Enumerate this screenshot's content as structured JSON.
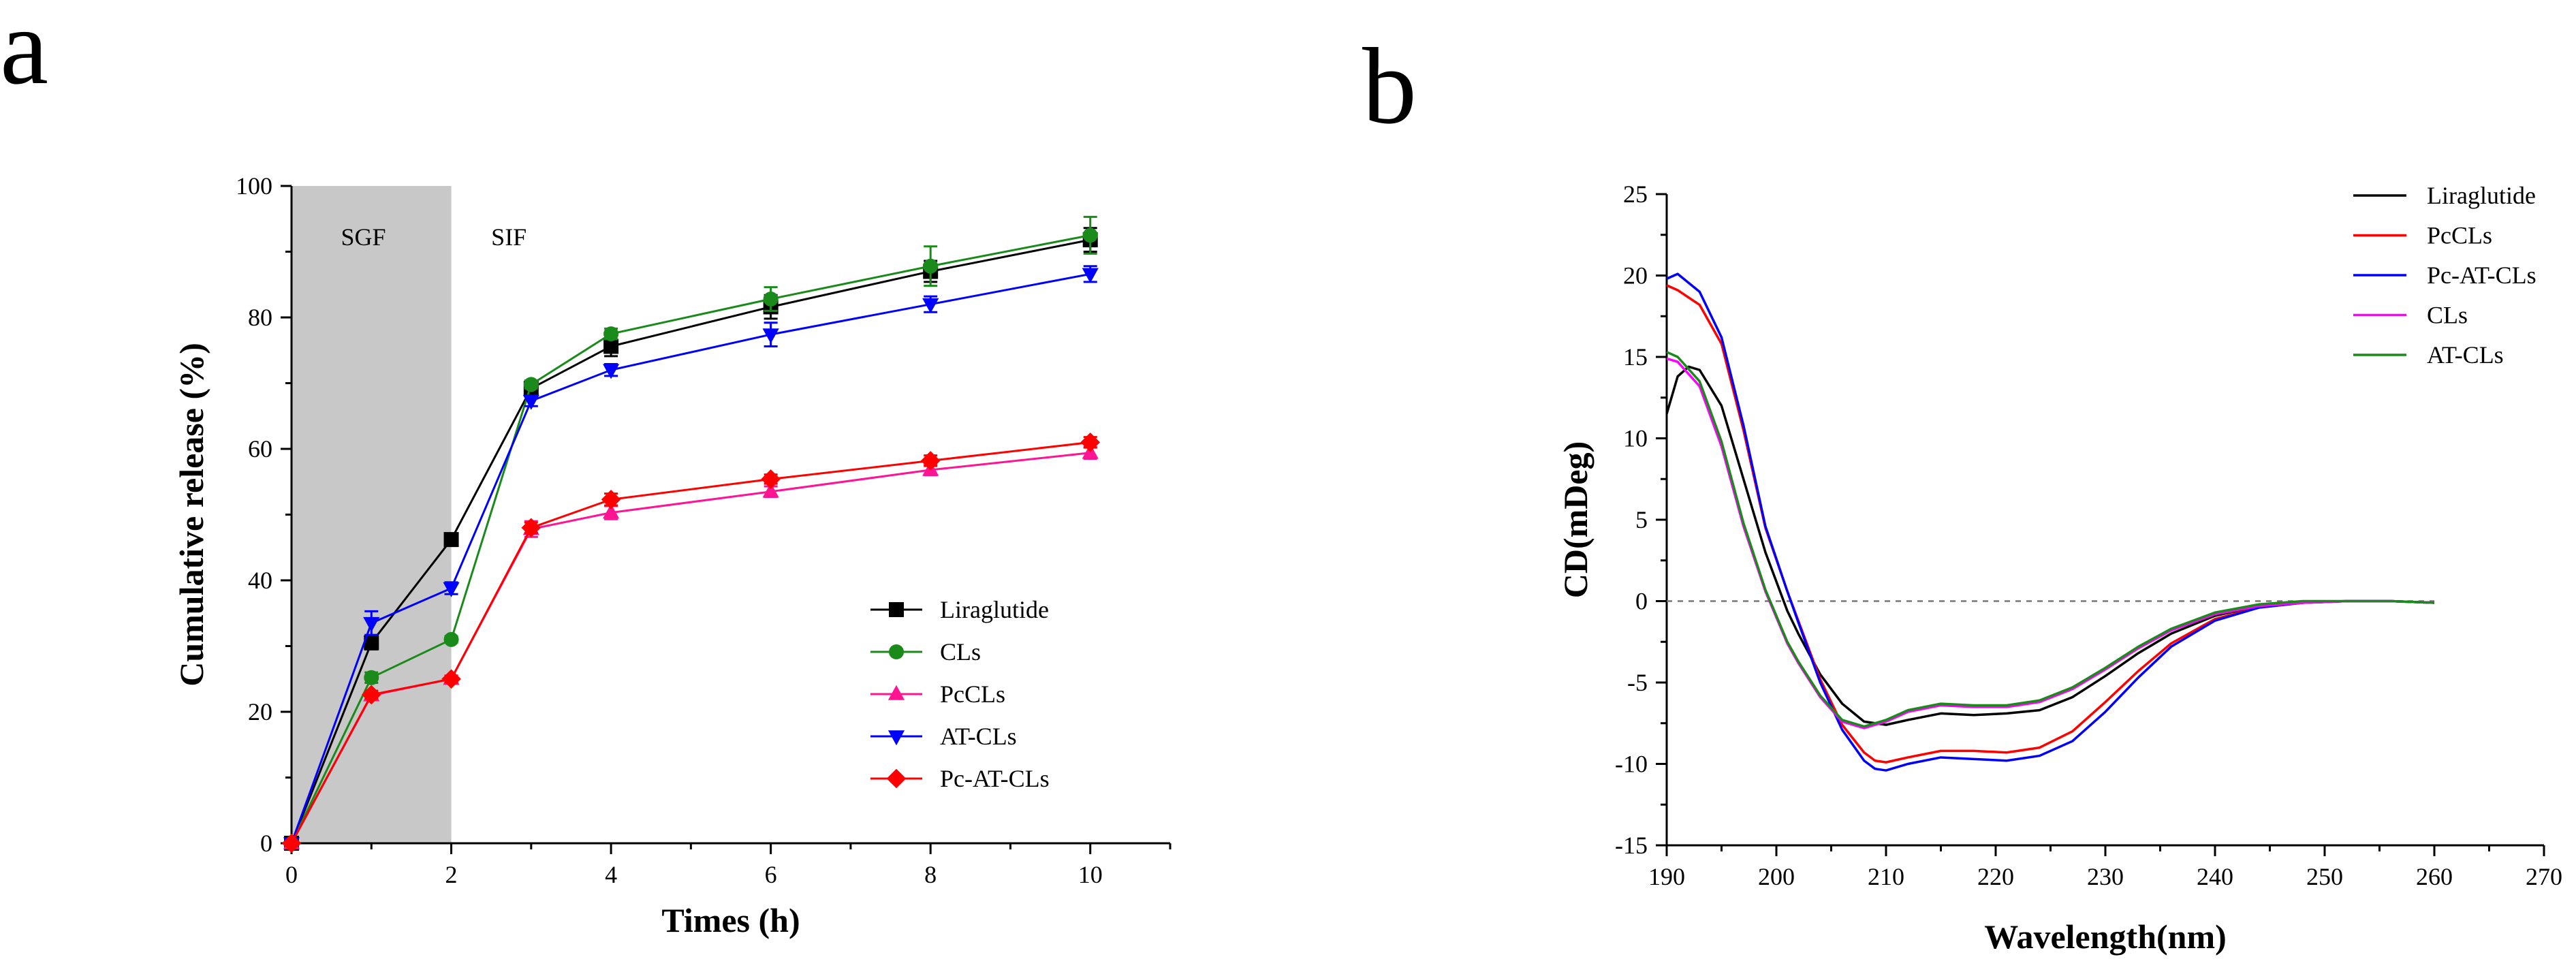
{
  "chart_data": [
    {
      "id": "a",
      "panel_label": "a",
      "type": "line",
      "xlabel": "Times (h)",
      "ylabel": "Cumulative release (%)",
      "xlim": [
        0,
        11
      ],
      "ylim": [
        0,
        100
      ],
      "xticks": [
        0,
        2,
        4,
        6,
        8,
        10
      ],
      "yticks": [
        0,
        20,
        40,
        60,
        80,
        100
      ],
      "x": [
        0,
        1,
        2,
        3,
        4,
        6,
        8,
        10
      ],
      "shaded_region": {
        "x0": 0,
        "x1": 2,
        "color": "#c8c8c8"
      },
      "annotations": [
        {
          "text": "SGF",
          "x": 0.9,
          "y": 91
        },
        {
          "text": "SIF",
          "x": 2.5,
          "y": 91
        }
      ],
      "legend_position": "lower-right",
      "series": [
        {
          "name": "Liraglutide",
          "color": "#000000",
          "marker": "square",
          "values": [
            0,
            30.5,
            46.2,
            69.2,
            75.6,
            81.6,
            87.0,
            91.8
          ],
          "errors": [
            0,
            1.0,
            0.8,
            0.7,
            1.5,
            1.8,
            1.6,
            1.8
          ]
        },
        {
          "name": "CLs",
          "color": "#1a8a1a",
          "marker": "circle",
          "values": [
            0,
            25.2,
            31.0,
            69.8,
            77.5,
            82.8,
            87.8,
            92.5
          ],
          "errors": [
            0,
            0.8,
            0.5,
            0.6,
            0.8,
            1.8,
            3.0,
            2.8
          ]
        },
        {
          "name": "PcCLs",
          "color": "#ff1493",
          "marker": "triangle-up",
          "values": [
            0,
            22.5,
            25.0,
            47.8,
            50.3,
            53.5,
            56.8,
            59.4
          ],
          "errors": [
            0,
            0.6,
            0.5,
            1.2,
            1.0,
            0.8,
            0.8,
            0.9
          ]
        },
        {
          "name": "AT-CLs",
          "color": "#0000ff",
          "marker": "triangle-down",
          "values": [
            0,
            33.5,
            38.8,
            67.3,
            72.0,
            77.4,
            82.0,
            86.6
          ],
          "errors": [
            0,
            1.8,
            0.9,
            0.8,
            0.9,
            1.8,
            1.2,
            1.2
          ]
        },
        {
          "name": "Pc-AT-CLs",
          "color": "#ff0000",
          "marker": "diamond",
          "values": [
            0,
            22.6,
            25.0,
            48.0,
            52.3,
            55.4,
            58.2,
            61.0
          ],
          "errors": [
            0,
            0.6,
            0.5,
            0.8,
            0.9,
            0.7,
            0.8,
            0.8
          ]
        }
      ]
    },
    {
      "id": "b",
      "panel_label": "b",
      "type": "line",
      "xlabel": "Wavelength(nm)",
      "ylabel": "CD(mDeg)",
      "xlim": [
        190,
        270
      ],
      "ylim": [
        -15,
        25
      ],
      "xticks": [
        190,
        200,
        210,
        220,
        230,
        240,
        250,
        260,
        270
      ],
      "yticks": [
        -15,
        -10,
        -5,
        0,
        5,
        10,
        15,
        20,
        25
      ],
      "reference_line": {
        "y": 0,
        "style": "dashed"
      },
      "legend_position": "top-right",
      "series": [
        {
          "name": "Liraglutide",
          "color": "#000000",
          "x": [
            190,
            191,
            192,
            193,
            195,
            197,
            199,
            201,
            202,
            204,
            206,
            208,
            210,
            212,
            215,
            218,
            221,
            224,
            227,
            230,
            233,
            236,
            240,
            244,
            248,
            252,
            256,
            260
          ],
          "values": [
            11.5,
            13.8,
            14.4,
            14.2,
            12.0,
            7.5,
            3.0,
            -0.6,
            -2.0,
            -4.5,
            -6.3,
            -7.4,
            -7.6,
            -7.3,
            -6.9,
            -7.0,
            -6.9,
            -6.7,
            -5.9,
            -4.6,
            -3.2,
            -2.0,
            -0.9,
            -0.3,
            -0.1,
            0.0,
            0.0,
            -0.1
          ]
        },
        {
          "name": "PcCLs",
          "color": "#ff0000",
          "x": [
            190,
            191,
            193,
            195,
            197,
            199,
            201,
            202,
            204,
            206,
            208,
            209,
            210,
            212,
            215,
            218,
            221,
            224,
            227,
            230,
            233,
            236,
            240,
            244,
            248,
            252,
            256,
            260
          ],
          "values": [
            19.4,
            19.1,
            18.2,
            15.8,
            10.5,
            4.5,
            0.6,
            -1.2,
            -4.8,
            -7.6,
            -9.3,
            -9.8,
            -9.9,
            -9.6,
            -9.2,
            -9.2,
            -9.3,
            -9.0,
            -8.0,
            -6.2,
            -4.3,
            -2.6,
            -1.1,
            -0.4,
            -0.1,
            0.0,
            0.0,
            -0.1
          ]
        },
        {
          "name": "Pc-AT-CLs",
          "color": "#0000ff",
          "x": [
            190,
            191,
            193,
            195,
            197,
            199,
            201,
            202,
            204,
            206,
            208,
            209,
            210,
            212,
            215,
            218,
            221,
            224,
            227,
            230,
            233,
            236,
            240,
            244,
            248,
            252,
            256,
            260
          ],
          "values": [
            19.8,
            20.1,
            19.0,
            16.2,
            10.8,
            4.6,
            0.6,
            -1.3,
            -5.0,
            -7.9,
            -9.8,
            -10.3,
            -10.4,
            -10.0,
            -9.6,
            -9.7,
            -9.8,
            -9.5,
            -8.6,
            -6.8,
            -4.7,
            -2.8,
            -1.2,
            -0.4,
            -0.1,
            0.0,
            0.0,
            -0.1
          ]
        },
        {
          "name": "CLs",
          "color": "#ff00ff",
          "x": [
            190,
            191,
            193,
            195,
            197,
            199,
            201,
            202,
            204,
            206,
            208,
            210,
            212,
            215,
            218,
            221,
            224,
            227,
            230,
            233,
            236,
            240,
            244,
            248,
            252,
            256,
            260
          ],
          "values": [
            14.9,
            14.7,
            13.2,
            9.5,
            4.6,
            0.6,
            -2.6,
            -3.8,
            -5.9,
            -7.4,
            -7.8,
            -7.4,
            -6.8,
            -6.4,
            -6.5,
            -6.5,
            -6.2,
            -5.4,
            -4.2,
            -2.9,
            -1.8,
            -0.8,
            -0.3,
            -0.1,
            0.0,
            0.0,
            -0.1
          ]
        },
        {
          "name": "AT-CLs",
          "color": "#1a8a1a",
          "x": [
            190,
            191,
            193,
            195,
            197,
            199,
            201,
            202,
            204,
            206,
            208,
            210,
            212,
            215,
            218,
            221,
            224,
            227,
            230,
            233,
            236,
            240,
            244,
            248,
            252,
            256,
            260
          ],
          "values": [
            15.3,
            15.0,
            13.5,
            9.8,
            4.8,
            0.7,
            -2.5,
            -3.7,
            -5.8,
            -7.3,
            -7.7,
            -7.3,
            -6.7,
            -6.3,
            -6.4,
            -6.4,
            -6.1,
            -5.3,
            -4.1,
            -2.8,
            -1.7,
            -0.7,
            -0.2,
            0.0,
            0.0,
            0.0,
            -0.1
          ]
        }
      ]
    }
  ]
}
